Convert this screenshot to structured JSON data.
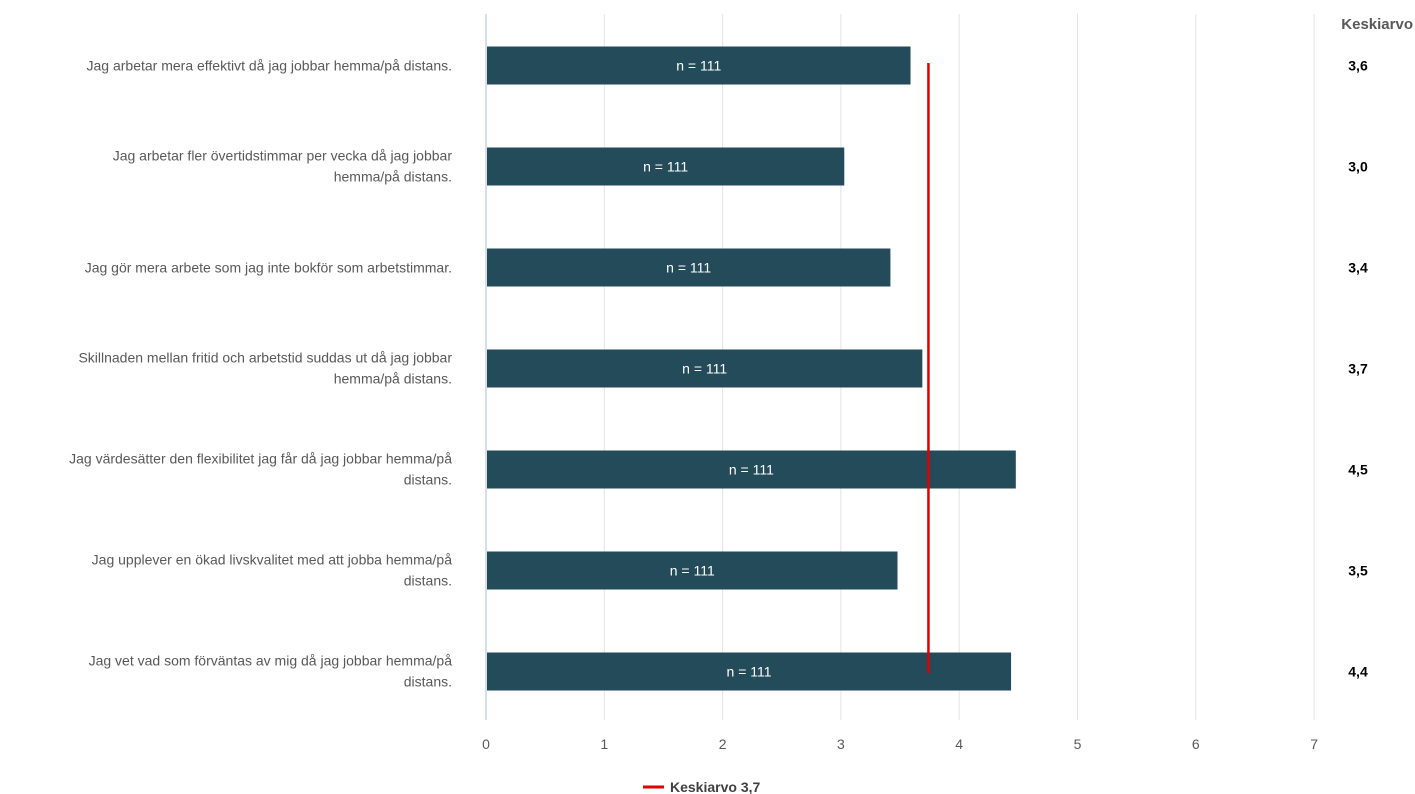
{
  "chart_data": {
    "type": "bar",
    "orientation": "horizontal",
    "categories": [
      [
        "Jag arbetar mera effektivt då jag jobbar hemma/på distans."
      ],
      [
        "Jag arbetar fler övertidstimmar per vecka då jag jobbar",
        "hemma/på distans."
      ],
      [
        "Jag gör mera arbete som jag inte bokför som arbetstimmar."
      ],
      [
        "Skillnaden mellan fritid och arbetstid suddas ut då jag jobbar",
        "hemma/på distans."
      ],
      [
        "Jag värdesätter den flexibilitet jag får då jag jobbar hemma/på",
        "distans."
      ],
      [
        "Jag upplever en ökad livskvalitet med att jobba hemma/på",
        "distans."
      ],
      [
        "Jag vet vad som förväntas av mig då jag jobbar hemma/på",
        "distans."
      ]
    ],
    "values": [
      3.58,
      3.02,
      3.41,
      3.68,
      4.47,
      3.47,
      4.43
    ],
    "bar_labels": [
      "n = 111",
      "n = 111",
      "n = 111",
      "n = 111",
      "n = 111",
      "n = 111",
      "n = 111"
    ],
    "average_column": {
      "header": "Keskiarvo",
      "values": [
        "3,6",
        "3,0",
        "3,4",
        "3,7",
        "4,5",
        "3,5",
        "4,4"
      ]
    },
    "reference_line": {
      "value": 3.74,
      "label": "Keskiarvo 3,7",
      "color": "#e00000"
    },
    "xlim": [
      0,
      7
    ],
    "xticks": [
      "0",
      "1",
      "2",
      "3",
      "4",
      "5",
      "6",
      "7"
    ],
    "grid": true,
    "legend_position": "bottom-center",
    "bar_color": "#234b5a"
  }
}
